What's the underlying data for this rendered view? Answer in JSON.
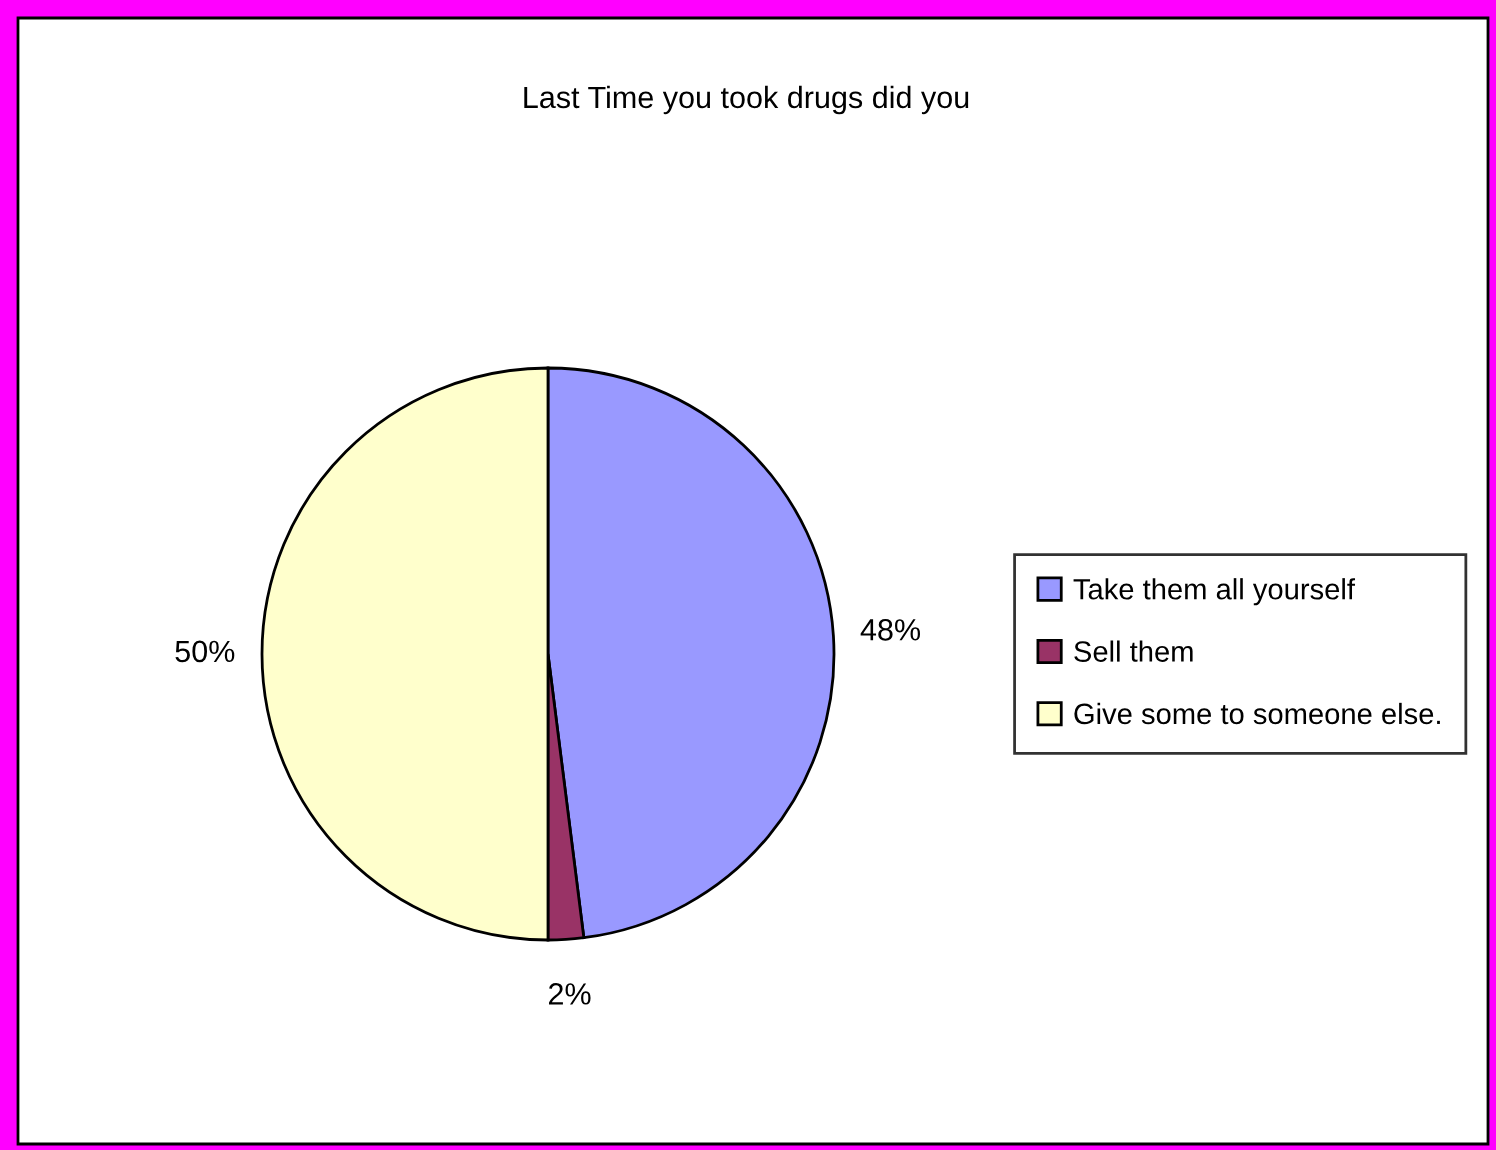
{
  "chart_data": {
    "type": "pie",
    "title": "Last Time you took drugs did you",
    "categories": [
      "Take them all yourself",
      "Sell them",
      "Give some to someone else."
    ],
    "values": [
      48,
      2,
      50
    ],
    "colors": [
      "#9999ff",
      "#993366",
      "#ffffcc"
    ],
    "value_labels": [
      "48%",
      "2%",
      "50%"
    ],
    "legend": "right"
  }
}
